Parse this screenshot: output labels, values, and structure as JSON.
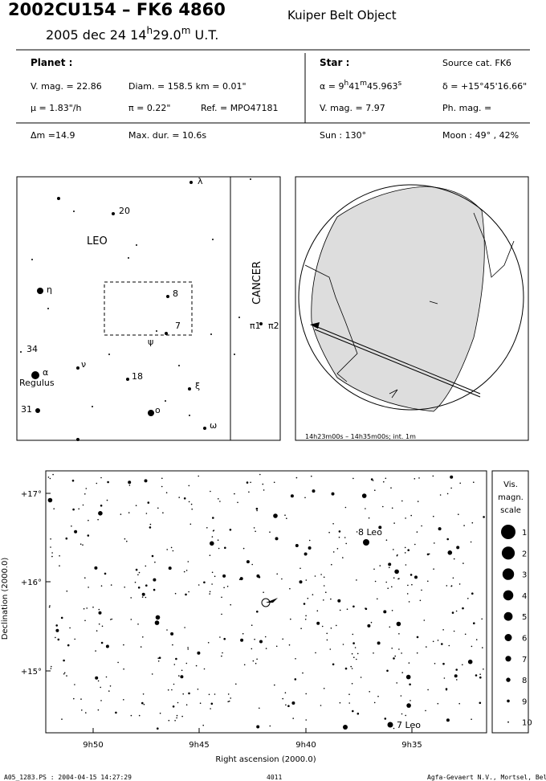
{
  "header": {
    "title": "2002CU154  –  FK6 4860",
    "object_type": "Kuiper Belt Object",
    "date": [
      "2005 dec 24  14",
      "h",
      "29.0",
      "m",
      " U.T."
    ]
  },
  "planet": {
    "label": "Planet :",
    "vmag": "V. mag. = 22.86",
    "diam": "Diam. = 158.5 km = 0.01\"",
    "mu": "μ = 1.83\"/h",
    "parallax": "π =  0.22\"",
    "ref": "Ref. = MPO47181"
  },
  "star": {
    "label": "Star :",
    "source": "Source cat.  FK6",
    "alpha": [
      "α = 9",
      "h",
      "41",
      "m",
      "45.963",
      "s"
    ],
    "delta": "δ = +15°45'16.66\"",
    "vmag": "V. mag. =  7.97",
    "phmag": "Ph. mag. ="
  },
  "summary": {
    "dm": "Δm =14.9",
    "maxdur": "Max. dur. = 10.6s",
    "sun": "Sun : 130°",
    "moon": "Moon :  49° , 42%"
  },
  "finder": {
    "labels": [
      "λ",
      "20",
      "LEO",
      "η",
      "8",
      "7",
      "ψ",
      "34",
      "α",
      "Regulus",
      "ν",
      "18",
      "ξ",
      "31",
      "o",
      "ω",
      "CANCER",
      "π1",
      "π2"
    ]
  },
  "globe": {
    "caption": "14h23m00s – 14h35m00s; int.  1m"
  },
  "star_chart": {
    "y_axis_label": "Declination (2000.0)",
    "x_axis_label": "Right ascension (2000.0)",
    "yticks": [
      "+17°",
      "+16°",
      "+15°"
    ],
    "xticks": [
      "9h50",
      "9h45",
      "9h40",
      "9h35"
    ],
    "star_labels": [
      "8 Leo",
      "7 Leo"
    ],
    "legend": {
      "title": [
        "Vis.",
        "magn.",
        "scale"
      ],
      "magnitudes": [
        1,
        2,
        3,
        4,
        5,
        6,
        7,
        8,
        9,
        10
      ]
    }
  },
  "footer": {
    "file": "A05_1283.PS : 2004-04-15 14:27:29",
    "number": "4011",
    "credit": "Agfa-Gevaert N.V., Mortsel, Belgium"
  }
}
